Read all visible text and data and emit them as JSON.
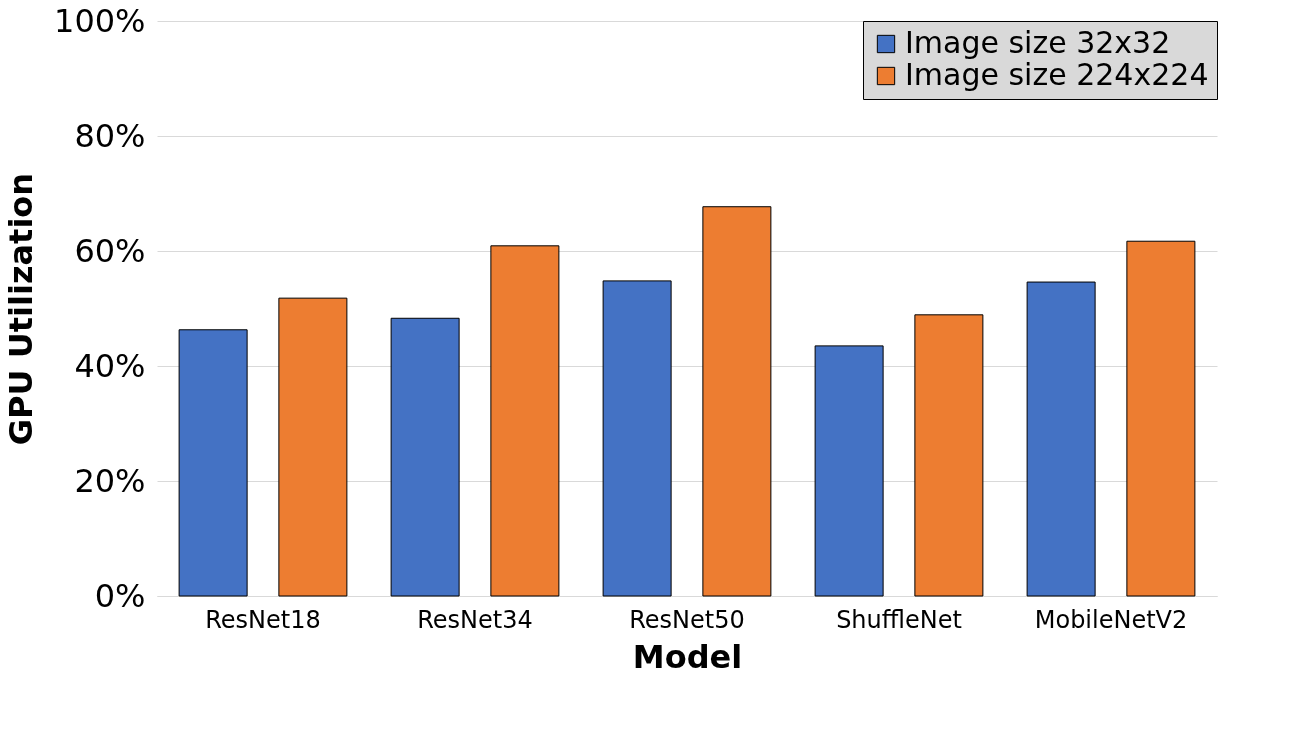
{
  "chart_data": {
    "type": "bar",
    "xlabel": "Model",
    "ylabel": "GPU Utilization",
    "categories": [
      "ResNet18",
      "ResNet34",
      "ResNet50",
      "ShuffleNet",
      "MobileNetV2"
    ],
    "series": [
      {
        "name": "Image size 32x32",
        "color": "#4472c4",
        "values": [
          46.3,
          48.3,
          54.8,
          43.5,
          54.6
        ]
      },
      {
        "name": "Image size 224x224",
        "color": "#ed7d31",
        "values": [
          51.8,
          60.9,
          67.7,
          48.9,
          61.7
        ]
      }
    ],
    "ylim": [
      0,
      100
    ],
    "yticks": [
      {
        "value": 0,
        "label": "0%"
      },
      {
        "value": 20,
        "label": "20%"
      },
      {
        "value": 40,
        "label": "40%"
      },
      {
        "value": 60,
        "label": "60%"
      },
      {
        "value": 80,
        "label": "80%"
      },
      {
        "value": 100,
        "label": "100%"
      }
    ],
    "grid": "y",
    "legend": "top right"
  }
}
